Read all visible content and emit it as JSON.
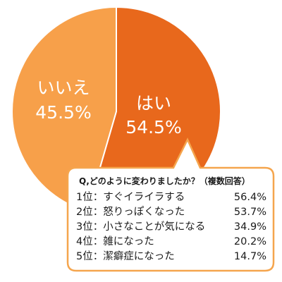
{
  "chart_data": {
    "type": "pie",
    "slices": [
      {
        "label": "はい",
        "value": 54.5,
        "value_label": "54.5%",
        "color": "#e8681c"
      },
      {
        "label": "いいえ",
        "value": 45.5,
        "value_label": "45.5%",
        "color": "#f7a04a"
      }
    ],
    "start": "top",
    "direction": "clockwise",
    "legend": "none"
  },
  "callout": {
    "question": "Q,どのように変わりましたか？（複数回答）",
    "border_color": "#f5a54d",
    "rows": [
      {
        "rank": "1位：すぐイライラする",
        "percent": "56.4%"
      },
      {
        "rank": "2位：怒りっぽくなった",
        "percent": "53.7%"
      },
      {
        "rank": "3位：小さなことが気になる",
        "percent": "34.9%"
      },
      {
        "rank": "4位：雑になった",
        "percent": "20.2%"
      },
      {
        "rank": "5位：潔癖症になった",
        "percent": "14.7%"
      }
    ]
  }
}
